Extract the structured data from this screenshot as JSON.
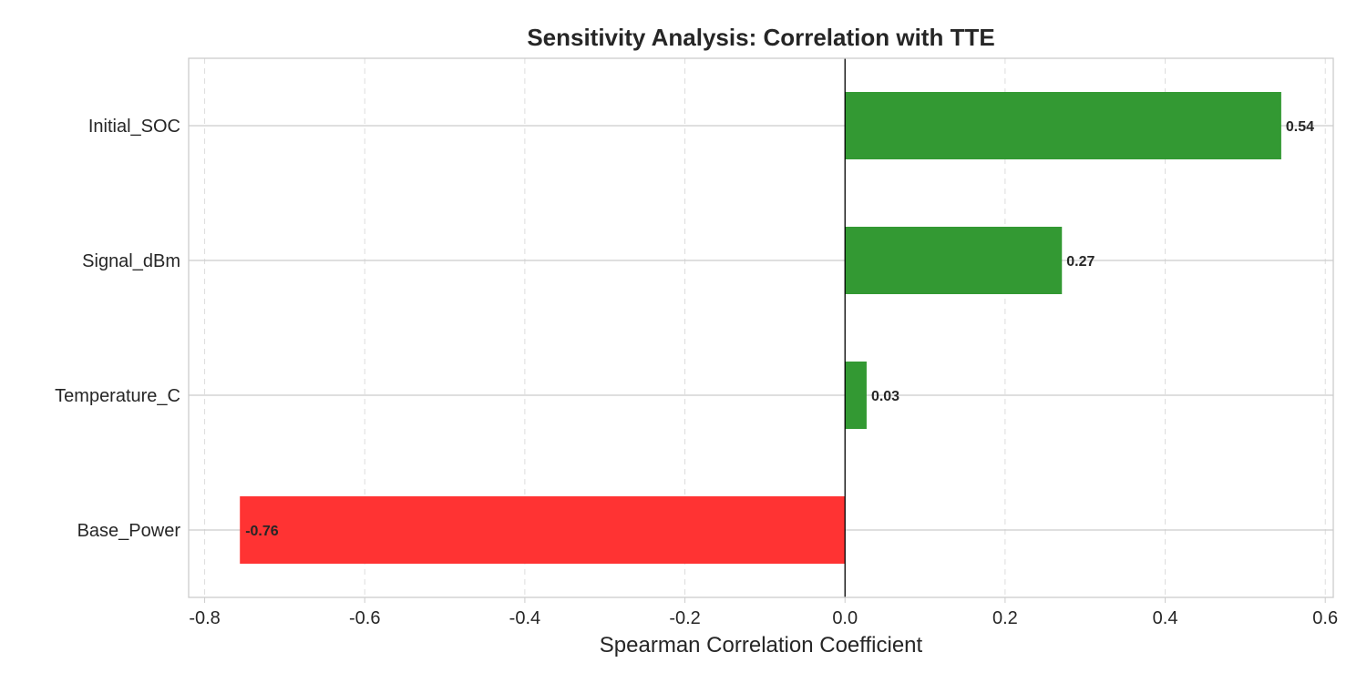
{
  "chart_data": {
    "type": "bar",
    "orientation": "horizontal",
    "title": "Sensitivity Analysis: Correlation with TTE",
    "xlabel": "Spearman Correlation Coefficient",
    "ylabel": "",
    "categories": [
      "Initial_SOC",
      "Signal_dBm",
      "Temperature_C",
      "Base_Power"
    ],
    "values": [
      0.545,
      0.271,
      0.027,
      -0.756
    ],
    "data_labels": [
      "0.54",
      "0.27",
      "0.03",
      "-0.76"
    ],
    "xlim": [
      -0.82,
      0.61
    ],
    "xticks": [
      -0.8,
      -0.6,
      -0.4,
      -0.2,
      0.0,
      0.2,
      0.4,
      0.6
    ],
    "xtick_labels": [
      "-0.8",
      "-0.6",
      "-0.4",
      "-0.2",
      "0.0",
      "0.2",
      "0.4",
      "0.6"
    ],
    "grid": true,
    "colors": {
      "positive": "#339933",
      "negative": "#ff3333",
      "zero_line": "#000000"
    }
  }
}
